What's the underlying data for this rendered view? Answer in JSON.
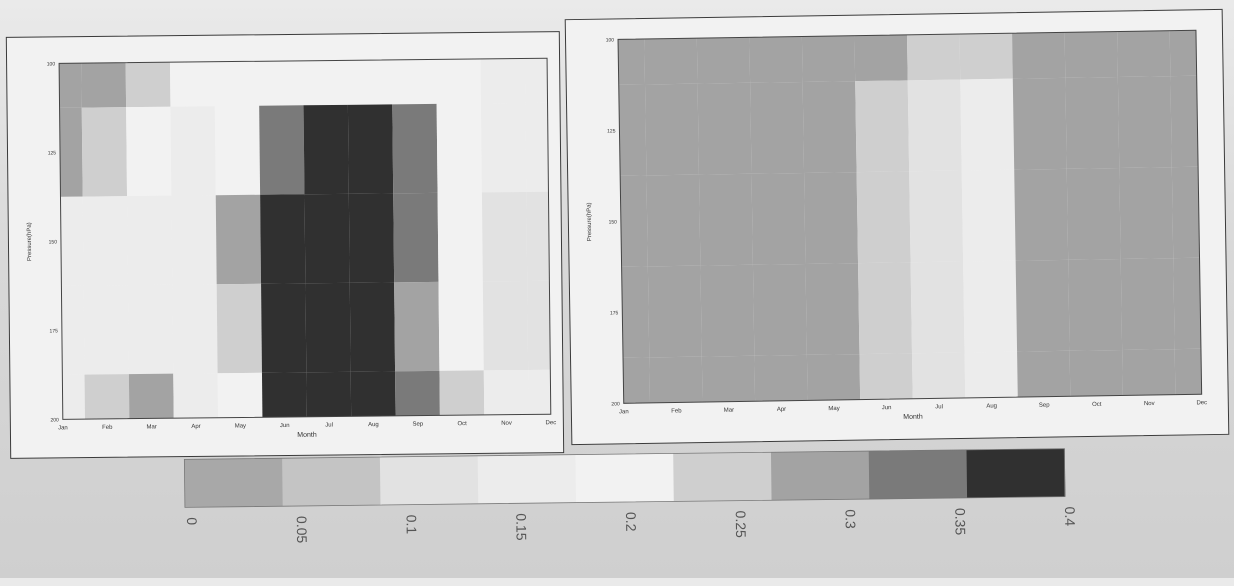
{
  "chart_data": [
    {
      "type": "heatmap",
      "title": "",
      "xlabel": "Month",
      "ylabel": "Pressure(hPa)",
      "x": [
        "Jan",
        "Feb",
        "Mar",
        "Apr",
        "May",
        "Jun",
        "Jul",
        "Aug",
        "Sep",
        "Oct",
        "Nov",
        "Dec"
      ],
      "y_ticks": [
        "100",
        "125",
        "150",
        "175",
        "200"
      ],
      "y": [
        100,
        125,
        150,
        175,
        200
      ],
      "z": [
        [
          0.3,
          0.3,
          0.25,
          0.2,
          0.2,
          0.2,
          0.2,
          0.2,
          0.2,
          0.2,
          0.15,
          0.15
        ],
        [
          0.3,
          0.25,
          0.2,
          0.15,
          0.2,
          0.35,
          0.4,
          0.4,
          0.35,
          0.2,
          0.15,
          0.15
        ],
        [
          0.15,
          0.15,
          0.15,
          0.15,
          0.3,
          0.4,
          0.4,
          0.4,
          0.35,
          0.2,
          0.1,
          0.1
        ],
        [
          0.15,
          0.15,
          0.15,
          0.15,
          0.25,
          0.4,
          0.4,
          0.4,
          0.3,
          0.2,
          0.1,
          0.1
        ],
        [
          0.15,
          0.25,
          0.3,
          0.15,
          0.2,
          0.4,
          0.4,
          0.4,
          0.35,
          0.25,
          0.15,
          0.15
        ]
      ],
      "levels": [
        0,
        0.05,
        0.1,
        0.15,
        0.2,
        0.25,
        0.3,
        0.35,
        0.4
      ],
      "ylim": [
        200,
        100
      ]
    },
    {
      "type": "heatmap",
      "title": "",
      "xlabel": "Month",
      "ylabel": "Pressure(hPa)",
      "x": [
        "Jan",
        "Feb",
        "Mar",
        "Apr",
        "May",
        "Jun",
        "Jul",
        "Aug",
        "Sep",
        "Oct",
        "Nov",
        "Dec"
      ],
      "y_ticks": [
        "100",
        "125",
        "150",
        "175",
        "200"
      ],
      "y": [
        100,
        125,
        150,
        175,
        200
      ],
      "z": [
        [
          0.3,
          0.3,
          0.3,
          0.3,
          0.3,
          0.3,
          0.25,
          0.25,
          0.3,
          0.3,
          0.3,
          0.3
        ],
        [
          0.3,
          0.3,
          0.3,
          0.3,
          0.3,
          0.25,
          0.1,
          0.15,
          0.3,
          0.3,
          0.3,
          0.3
        ],
        [
          0.3,
          0.3,
          0.3,
          0.3,
          0.3,
          0.25,
          0.1,
          0.15,
          0.3,
          0.3,
          0.3,
          0.3
        ],
        [
          0.3,
          0.3,
          0.3,
          0.3,
          0.3,
          0.25,
          0.1,
          0.15,
          0.3,
          0.3,
          0.3,
          0.3
        ],
        [
          0.3,
          0.3,
          0.3,
          0.3,
          0.3,
          0.25,
          0.1,
          0.15,
          0.3,
          0.3,
          0.3,
          0.3
        ]
      ],
      "levels": [
        0,
        0.05,
        0.1,
        0.15,
        0.2,
        0.25,
        0.3,
        0.35,
        0.4
      ],
      "ylim": [
        200,
        100
      ]
    }
  ],
  "colorbar": {
    "tick_labels": [
      "0",
      "0.05",
      "0.1",
      "0.15",
      "0.2",
      "0.25",
      "0.3",
      "0.35",
      "0.4"
    ],
    "colors": [
      "#a8a8a8",
      "#c4c4c4",
      "#e2e2e2",
      "#ececec",
      "#f2f2f2",
      "#cfcfcf",
      "#a3a3a3",
      "#7a7a7a",
      "#303030"
    ]
  }
}
